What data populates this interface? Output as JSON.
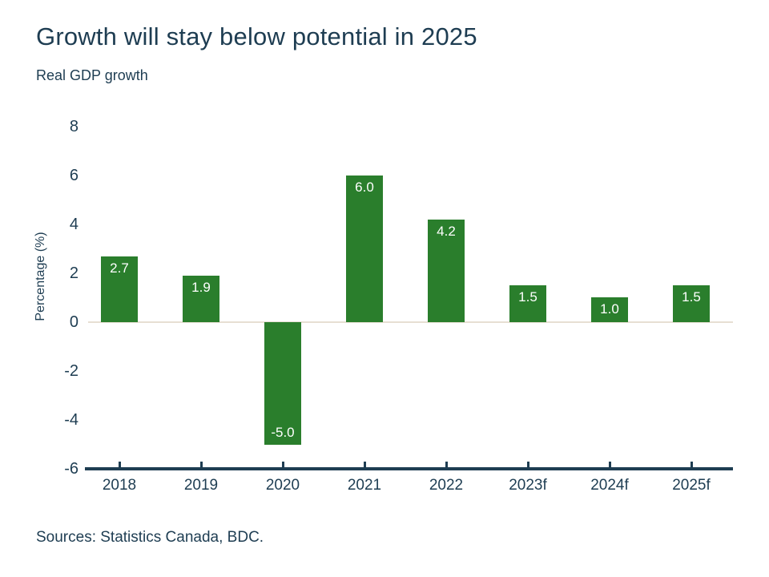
{
  "chart_data": {
    "type": "bar",
    "title": "Growth will stay below potential in 2025",
    "subtitle": "Real GDP growth",
    "ylabel": "Percentage (%)",
    "categories": [
      "2018",
      "2019",
      "2020",
      "2021",
      "2022",
      "2023f",
      "2024f",
      "2025f"
    ],
    "values": [
      2.7,
      1.9,
      -5.0,
      6.0,
      4.2,
      1.5,
      1.0,
      1.5
    ],
    "value_labels": [
      "2.7",
      "1.9",
      "-5.0",
      "6.0",
      "4.2",
      "1.5",
      "1.0",
      "1.5"
    ],
    "yticks": [
      8,
      6,
      4,
      2,
      0,
      -2,
      -4,
      -6
    ],
    "ylim": [
      -6,
      8
    ],
    "grid": false,
    "legend": false,
    "colors": {
      "bar": "#2a7e2c",
      "text": "#1e3d52",
      "axis": "#1e3d52",
      "zero_line": "#e7dfd3",
      "bar_label": "#ffffff",
      "background": "#ffffff"
    },
    "sources": "Sources: Statistics Canada, BDC."
  }
}
